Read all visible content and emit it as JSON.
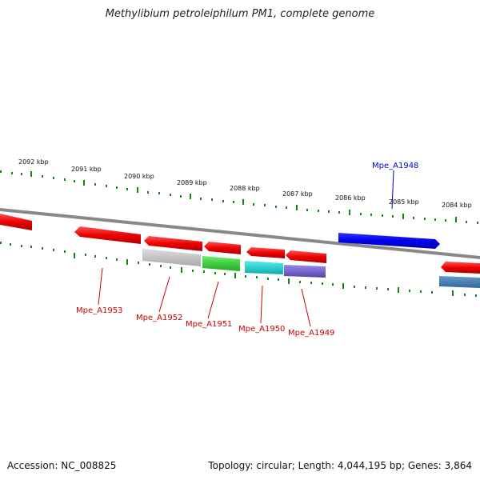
{
  "title": "Methylibium petroleiphilum PM1, complete genome",
  "footer": {
    "accession": "Accession: NC_008825",
    "topology": "Topology: circular; Length: 4,044,195 bp; Genes: 3,864"
  },
  "ticks": [
    "2092 kbp",
    "2091 kbp",
    "2090 kbp",
    "2089 kbp",
    "2088 kbp",
    "2087 kbp",
    "2086 kbp",
    "2085 kbp",
    "2084 kbp"
  ],
  "gene_labels": [
    {
      "text": "Mpe_A1948",
      "color": "#0000cc"
    },
    {
      "text": "Mpe_A1953",
      "color": "#cc0000"
    },
    {
      "text": "Mpe_A1952",
      "color": "#cc0000"
    },
    {
      "text": "Mpe_A1951",
      "color": "#cc0000"
    },
    {
      "text": "Mpe_A1950",
      "color": "#cc0000"
    },
    {
      "text": "Mpe_A1949",
      "color": "#cc0000"
    }
  ],
  "colors": {
    "forward_gene": "#ee0000",
    "reverse_gene": "#0000ee",
    "backbone": "#888888",
    "tick": "#118811",
    "gray_gene": "#bbbbbb",
    "green_gene": "#33cc33",
    "cyan_gene": "#22cccc",
    "purple_gene": "#7766cc",
    "steel_gene": "#4477aa"
  }
}
